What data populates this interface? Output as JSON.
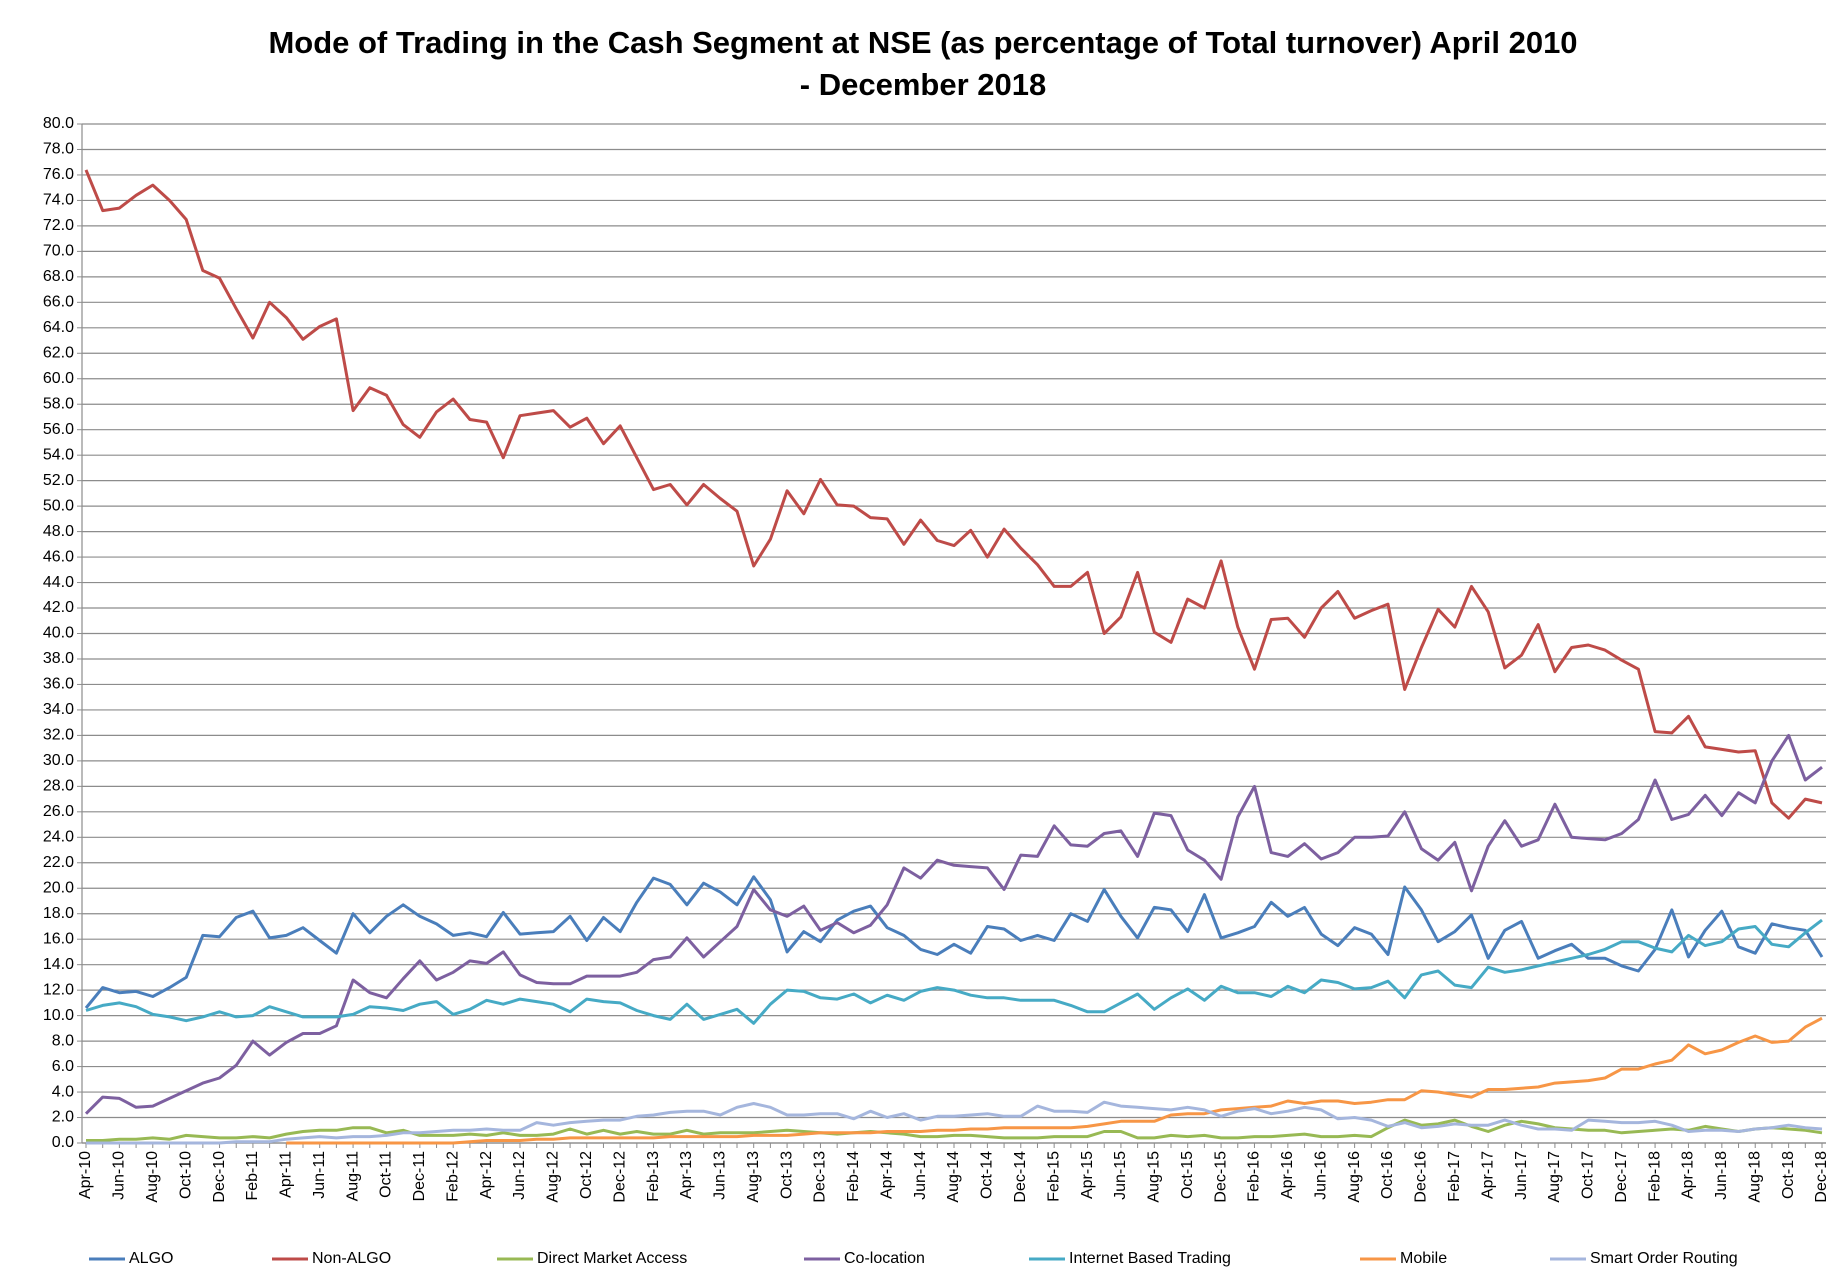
{
  "chart_data": {
    "type": "line",
    "title": "Mode of Trading in the Cash Segment at NSE (as percentage of Total turnover) April 2010 - December 2018",
    "categories": [
      "Apr-10",
      null,
      "Jun-10",
      null,
      "Aug-10",
      null,
      "Oct-10",
      null,
      "Dec-10",
      null,
      "Feb-11",
      null,
      "Apr-11",
      null,
      "Jun-11",
      null,
      "Aug-11",
      null,
      "Oct-11",
      null,
      "Dec-11",
      null,
      "Feb-12",
      null,
      "Apr-12",
      null,
      "Jun-12",
      null,
      "Aug-12",
      null,
      "Oct-12",
      null,
      "Dec-12",
      null,
      "Feb-13",
      null,
      "Apr-13",
      null,
      "Jun-13",
      null,
      "Aug-13",
      null,
      "Oct-13",
      null,
      "Dec-13",
      null,
      "Feb-14",
      null,
      "Apr-14",
      null,
      "Jun-14",
      null,
      "Aug-14",
      null,
      "Oct-14",
      null,
      "Dec-14",
      null,
      "Feb-15",
      null,
      "Apr-15",
      null,
      "Jun-15",
      null,
      "Aug-15",
      null,
      "Oct-15",
      null,
      "Dec-15",
      null,
      "Feb-16",
      null,
      "Apr-16",
      null,
      "Jun-16",
      null,
      "Aug-16",
      null,
      "Oct-16",
      null,
      "Dec-16",
      null,
      "Feb-17",
      null,
      "Apr-17",
      null,
      "Jun-17",
      null,
      "Aug-17",
      null,
      "Oct-17",
      null,
      "Dec-17",
      null,
      "Feb-18",
      null,
      "Apr-18",
      null,
      "Jun-18",
      null,
      "Aug-18",
      null,
      "Oct-18",
      null,
      "Dec-18"
    ],
    "series": [
      {
        "name": "ALGO",
        "color": "#4a7ebb",
        "values": [
          10.6,
          12.2,
          11.8,
          11.9,
          11.5,
          12.2,
          13.0,
          16.3,
          16.2,
          17.7,
          18.2,
          16.1,
          16.3,
          16.9,
          15.9,
          14.9,
          18.0,
          16.5,
          17.8,
          18.7,
          17.8,
          17.2,
          16.3,
          16.5,
          16.2,
          18.1,
          16.4,
          16.5,
          16.6,
          17.8,
          15.9,
          17.7,
          16.6,
          18.9,
          20.8,
          20.3,
          18.7,
          20.4,
          19.7,
          18.7,
          20.9,
          19.1,
          15.0,
          16.6,
          15.8,
          17.5,
          18.2,
          18.6,
          16.9,
          16.3,
          15.2,
          14.8,
          15.6,
          14.9,
          17.0,
          16.8,
          15.9,
          16.3,
          15.9,
          18.0,
          17.4,
          19.9,
          17.8,
          16.1,
          18.5,
          18.3,
          16.6,
          19.5,
          16.1,
          16.5,
          17.0,
          18.9,
          17.8,
          18.5,
          16.4,
          15.5,
          16.9,
          16.4,
          14.8,
          20.1,
          18.3,
          15.8,
          16.6,
          17.9,
          14.5,
          16.7,
          17.4,
          14.5,
          15.1,
          15.6,
          14.5,
          14.5,
          13.9,
          13.5,
          15.2,
          18.3,
          14.6,
          16.7,
          18.2,
          15.4,
          14.9,
          17.2,
          16.9,
          16.7,
          14.6
        ]
      },
      {
        "name": "Non-ALGO",
        "color": "#be4b48",
        "values": [
          76.4,
          73.2,
          73.4,
          74.4,
          75.2,
          74.0,
          72.5,
          68.5,
          67.9,
          65.5,
          63.2,
          66.0,
          64.8,
          63.1,
          64.1,
          64.7,
          57.5,
          59.3,
          58.7,
          56.4,
          55.4,
          57.4,
          58.4,
          56.8,
          56.6,
          53.8,
          57.1,
          57.3,
          57.5,
          56.2,
          56.9,
          54.9,
          56.3,
          53.8,
          51.3,
          51.7,
          50.1,
          51.7,
          50.6,
          49.6,
          45.3,
          47.4,
          51.2,
          49.4,
          52.1,
          50.1,
          50.0,
          49.1,
          49.0,
          47.0,
          48.9,
          47.3,
          46.9,
          48.1,
          46.0,
          48.2,
          46.7,
          45.4,
          43.7,
          43.7,
          44.8,
          40.0,
          41.3,
          44.8,
          40.1,
          39.3,
          42.7,
          42.0,
          45.7,
          40.5,
          37.2,
          41.1,
          41.2,
          39.7,
          42.0,
          43.3,
          41.2,
          41.8,
          42.3,
          35.6,
          38.9,
          41.9,
          40.5,
          43.7,
          41.7,
          37.3,
          38.3,
          40.7,
          37.0,
          38.9,
          39.1,
          38.7,
          37.9,
          37.2,
          32.3,
          32.2,
          33.5,
          31.1,
          30.9,
          30.7,
          30.8,
          26.7,
          25.5,
          27.0,
          26.7
        ]
      },
      {
        "name": "Direct Market Access",
        "color": "#98b954",
        "values": [
          0.2,
          0.2,
          0.3,
          0.3,
          0.4,
          0.3,
          0.6,
          0.5,
          0.4,
          0.4,
          0.5,
          0.4,
          0.7,
          0.9,
          1.0,
          1.0,
          1.2,
          1.2,
          0.8,
          1.0,
          0.6,
          0.6,
          0.6,
          0.7,
          0.6,
          0.8,
          0.6,
          0.6,
          0.7,
          1.1,
          0.7,
          1.0,
          0.7,
          0.9,
          0.7,
          0.7,
          1.0,
          0.7,
          0.8,
          0.8,
          0.8,
          0.9,
          1.0,
          0.9,
          0.8,
          0.7,
          0.8,
          0.9,
          0.8,
          0.7,
          0.5,
          0.5,
          0.6,
          0.6,
          0.5,
          0.4,
          0.4,
          0.4,
          0.5,
          0.5,
          0.5,
          0.9,
          0.9,
          0.4,
          0.4,
          0.6,
          0.5,
          0.6,
          0.4,
          0.4,
          0.5,
          0.5,
          0.6,
          0.7,
          0.5,
          0.5,
          0.6,
          0.5,
          1.2,
          1.8,
          1.4,
          1.5,
          1.8,
          1.3,
          0.9,
          1.4,
          1.7,
          1.5,
          1.2,
          1.1,
          1.0,
          1.0,
          0.8,
          0.9,
          1.0,
          1.1,
          1.0,
          1.3,
          1.1,
          0.9,
          1.1,
          1.2,
          1.1,
          1.0,
          0.8
        ]
      },
      {
        "name": "Co-location",
        "color": "#7d60a0",
        "values": [
          2.3,
          3.6,
          3.5,
          2.8,
          2.9,
          3.5,
          4.1,
          4.7,
          5.1,
          6.1,
          8.0,
          6.9,
          7.9,
          8.6,
          8.6,
          9.2,
          12.8,
          11.8,
          11.4,
          12.9,
          14.3,
          12.8,
          13.4,
          14.3,
          14.1,
          15.0,
          13.2,
          12.6,
          12.5,
          12.5,
          13.1,
          13.1,
          13.1,
          13.4,
          14.4,
          14.6,
          16.1,
          14.6,
          15.8,
          17.0,
          19.9,
          18.3,
          17.8,
          18.6,
          16.7,
          17.3,
          16.5,
          17.1,
          18.7,
          21.6,
          20.8,
          22.2,
          21.8,
          21.7,
          21.6,
          19.9,
          22.6,
          22.5,
          24.9,
          23.4,
          23.3,
          24.3,
          24.5,
          22.5,
          25.9,
          25.7,
          23.0,
          22.2,
          20.7,
          25.6,
          28.0,
          22.8,
          22.5,
          23.5,
          22.3,
          22.8,
          24.0,
          24.0,
          24.1,
          26.0,
          23.1,
          22.2,
          23.6,
          19.8,
          23.3,
          25.3,
          23.3,
          23.8,
          26.6,
          24.0,
          23.9,
          23.8,
          24.3,
          25.4,
          28.5,
          25.4,
          25.8,
          27.3,
          25.7,
          27.5,
          26.7,
          30.0,
          32.0,
          28.5,
          29.5
        ]
      },
      {
        "name": "Internet Based Trading",
        "color": "#46aac5",
        "values": [
          10.4,
          10.8,
          11.0,
          10.7,
          10.1,
          9.9,
          9.6,
          9.9,
          10.3,
          9.9,
          10.0,
          10.7,
          10.3,
          9.9,
          9.9,
          9.9,
          10.1,
          10.7,
          10.6,
          10.4,
          10.9,
          11.1,
          10.1,
          10.5,
          11.2,
          10.9,
          11.3,
          11.1,
          10.9,
          10.3,
          11.3,
          11.1,
          11.0,
          10.4,
          10.0,
          9.7,
          10.9,
          9.7,
          10.1,
          10.5,
          9.4,
          10.9,
          12.0,
          11.9,
          11.4,
          11.3,
          11.7,
          11.0,
          11.6,
          11.2,
          11.9,
          12.2,
          12.0,
          11.6,
          11.4,
          11.4,
          11.2,
          11.2,
          11.2,
          10.8,
          10.3,
          10.3,
          11.0,
          11.7,
          10.5,
          11.4,
          12.1,
          11.2,
          12.3,
          11.8,
          11.8,
          11.5,
          12.3,
          11.8,
          12.8,
          12.6,
          12.1,
          12.2,
          12.7,
          11.4,
          13.2,
          13.5,
          12.4,
          12.2,
          13.8,
          13.4,
          13.6,
          13.9,
          14.2,
          14.5,
          14.8,
          15.2,
          15.8,
          15.8,
          15.3,
          15.0,
          16.3,
          15.5,
          15.8,
          16.8,
          17.0,
          15.6,
          15.4,
          16.5,
          17.5
        ]
      },
      {
        "name": "Mobile",
        "color": "#f79646",
        "values": [
          null,
          null,
          null,
          null,
          null,
          null,
          null,
          null,
          null,
          null,
          null,
          null,
          0.0,
          0.0,
          0.0,
          0.0,
          0.0,
          0.0,
          0.0,
          0.0,
          0.0,
          0.0,
          0.0,
          0.1,
          0.2,
          0.2,
          0.2,
          0.3,
          0.3,
          0.4,
          0.4,
          0.4,
          0.4,
          0.4,
          0.4,
          0.5,
          0.5,
          0.5,
          0.5,
          0.5,
          0.6,
          0.6,
          0.6,
          0.7,
          0.8,
          0.8,
          0.8,
          0.8,
          0.9,
          0.9,
          0.9,
          1.0,
          1.0,
          1.1,
          1.1,
          1.2,
          1.2,
          1.2,
          1.2,
          1.2,
          1.3,
          1.5,
          1.7,
          1.7,
          1.7,
          2.2,
          2.3,
          2.3,
          2.6,
          2.7,
          2.8,
          2.9,
          3.3,
          3.1,
          3.3,
          3.3,
          3.1,
          3.2,
          3.4,
          3.4,
          4.1,
          4.0,
          3.8,
          3.6,
          4.2,
          4.2,
          4.3,
          4.4,
          4.7,
          4.8,
          4.9,
          5.1,
          5.8,
          5.8,
          6.2,
          6.5,
          7.7,
          7.0,
          7.3,
          7.9,
          8.4,
          7.9,
          8.0,
          9.1,
          9.8
        ]
      },
      {
        "name": "Smart Order Routing",
        "color": "#a5b6dd",
        "values": [
          0.0,
          0.0,
          0.0,
          0.0,
          0.0,
          0.0,
          0.0,
          0.0,
          0.0,
          0.1,
          0.1,
          0.1,
          0.3,
          0.4,
          0.5,
          0.4,
          0.5,
          0.5,
          0.6,
          0.8,
          0.8,
          0.9,
          1.0,
          1.0,
          1.1,
          1.0,
          1.0,
          1.6,
          1.4,
          1.6,
          1.7,
          1.8,
          1.8,
          2.1,
          2.2,
          2.4,
          2.5,
          2.5,
          2.2,
          2.8,
          3.1,
          2.8,
          2.2,
          2.2,
          2.3,
          2.3,
          1.9,
          2.5,
          2.0,
          2.3,
          1.8,
          2.1,
          2.1,
          2.2,
          2.3,
          2.1,
          2.1,
          2.9,
          2.5,
          2.5,
          2.4,
          3.2,
          2.9,
          2.8,
          2.7,
          2.6,
          2.8,
          2.6,
          2.1,
          2.5,
          2.7,
          2.3,
          2.5,
          2.8,
          2.6,
          1.9,
          2.0,
          1.8,
          1.3,
          1.6,
          1.2,
          1.3,
          1.5,
          1.4,
          1.4,
          1.8,
          1.4,
          1.1,
          1.1,
          1.0,
          1.8,
          1.7,
          1.6,
          1.6,
          1.7,
          1.4,
          0.9,
          1.0,
          1.0,
          0.9,
          1.1,
          1.2,
          1.4,
          1.2,
          1.1
        ]
      }
    ],
    "ylim": [
      0,
      80
    ],
    "yticks": [
      {
        "value": 0,
        "label": "0.0"
      },
      {
        "value": 2,
        "label": "2.0"
      },
      {
        "value": 4,
        "label": "4.0"
      },
      {
        "value": 6,
        "label": "6.0"
      },
      {
        "value": 8,
        "label": "8.0"
      },
      {
        "value": 10,
        "label": "10.0"
      },
      {
        "value": 12,
        "label": "12.0"
      },
      {
        "value": 14,
        "label": "14.0"
      },
      {
        "value": 16,
        "label": "16.0"
      },
      {
        "value": 18,
        "label": "18.0"
      },
      {
        "value": 20,
        "label": "20.0"
      },
      {
        "value": 22,
        "label": "22.0"
      },
      {
        "value": 24,
        "label": "24.0"
      },
      {
        "value": 26,
        "label": "26.0"
      },
      {
        "value": 28,
        "label": "28.0"
      },
      {
        "value": 30,
        "label": "30.0"
      },
      {
        "value": 32,
        "label": "32.0"
      },
      {
        "value": 34,
        "label": "34.0"
      },
      {
        "value": 36,
        "label": "36.0"
      },
      {
        "value": 38,
        "label": "38.0"
      },
      {
        "value": 40,
        "label": "40.0"
      },
      {
        "value": 42,
        "label": "42.0"
      },
      {
        "value": 44,
        "label": "44.0"
      },
      {
        "value": 46,
        "label": "46.0"
      },
      {
        "value": 48,
        "label": "48.0"
      },
      {
        "value": 50,
        "label": "50.0"
      },
      {
        "value": 52,
        "label": "52.0"
      },
      {
        "value": 54,
        "label": "54.0"
      },
      {
        "value": 56,
        "label": "56.0"
      },
      {
        "value": 58,
        "label": "58.0"
      },
      {
        "value": 60,
        "label": "60.0"
      },
      {
        "value": 62,
        "label": "62.0"
      },
      {
        "value": 64,
        "label": "64.0"
      },
      {
        "value": 66,
        "label": "66.0"
      },
      {
        "value": 68,
        "label": "68.0"
      },
      {
        "value": 70,
        "label": "70.0"
      },
      {
        "value": 72,
        "label": "72.0"
      },
      {
        "value": 74,
        "label": "74.0"
      },
      {
        "value": 76,
        "label": "76.0"
      },
      {
        "value": 78,
        "label": "78.0"
      },
      {
        "value": 80,
        "label": "80.0"
      }
    ],
    "grid": true,
    "legend": "bottom"
  }
}
